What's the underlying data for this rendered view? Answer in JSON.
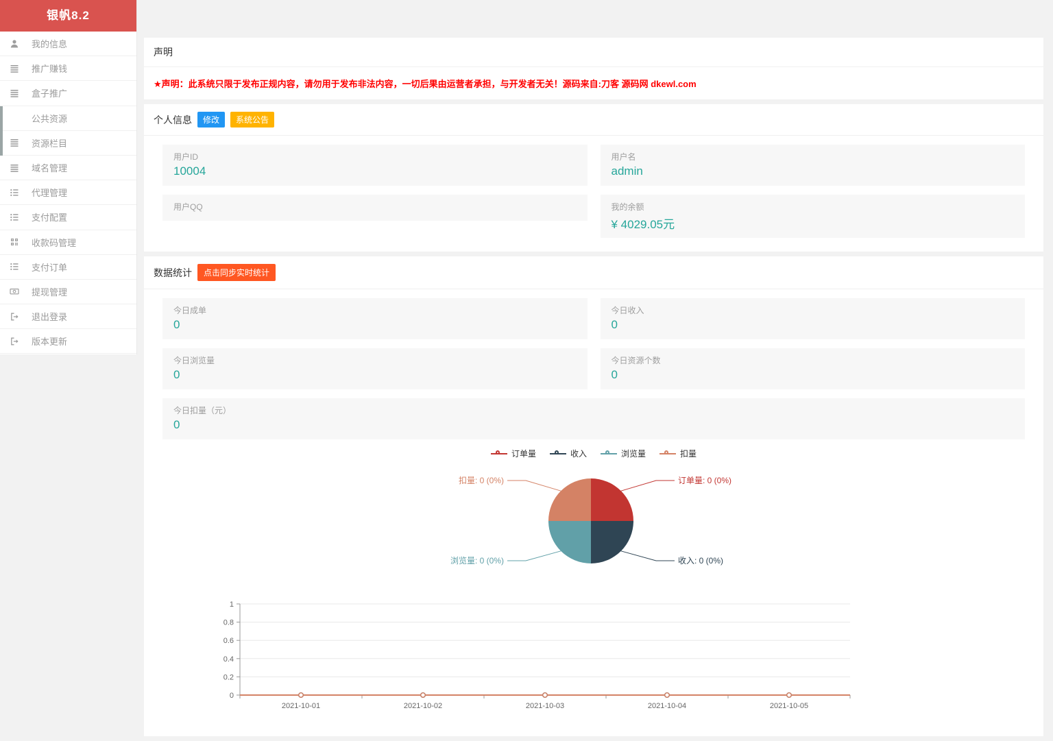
{
  "app": {
    "title": "银帆8.2"
  },
  "sidebar": {
    "items": [
      {
        "label": "我的信息",
        "icon": "user-icon"
      },
      {
        "label": "推广赚钱",
        "icon": "list-icon"
      },
      {
        "label": "盒子推广",
        "icon": "list-icon"
      },
      {
        "label": "公共资源",
        "icon": null
      },
      {
        "label": "资源栏目",
        "icon": "list-icon"
      },
      {
        "label": "域名管理",
        "icon": "list-icon"
      },
      {
        "label": "代理管理",
        "icon": "list-ol-icon"
      },
      {
        "label": "支付配置",
        "icon": "list-ol-icon"
      },
      {
        "label": "收款码管理",
        "icon": "qrcode-icon"
      },
      {
        "label": "支付订单",
        "icon": "list-ol-icon"
      },
      {
        "label": "提现管理",
        "icon": "money-icon"
      },
      {
        "label": "退出登录",
        "icon": "signout-icon"
      },
      {
        "label": "版本更新",
        "icon": "update-icon"
      }
    ]
  },
  "declaration": {
    "title": "声明",
    "warning": "★声明：此系统只限于发布正规内容，请勿用于发布非法内容，一切后果由运营者承担，与开发者无关！源码来自:刀客 源码网 dkewl.com"
  },
  "profile": {
    "title": "个人信息",
    "edit_badge": "修改",
    "announce_badge": "系统公告",
    "fields": {
      "user_id": {
        "label": "用户ID",
        "value": "10004"
      },
      "username": {
        "label": "用户名",
        "value": "admin"
      },
      "user_qq": {
        "label": "用户QQ",
        "value": ""
      },
      "balance": {
        "label": "我的余额",
        "value": "¥ 4029.05元"
      }
    }
  },
  "stats": {
    "title": "数据统计",
    "sync_button": "点击同步实时统计",
    "boxes": {
      "today_orders": {
        "label": "今日成单",
        "value": "0"
      },
      "today_income": {
        "label": "今日收入",
        "value": "0"
      },
      "today_views": {
        "label": "今日浏览量",
        "value": "0"
      },
      "today_resources": {
        "label": "今日资源个数",
        "value": "0"
      },
      "today_deduction": {
        "label": "今日扣量（元）",
        "value": "0"
      }
    }
  },
  "chart_data": [
    {
      "type": "pie",
      "legend_position": "top",
      "legend": [
        "订单量",
        "收入",
        "浏览量",
        "扣量"
      ],
      "series": [
        {
          "name": "订单量",
          "value": 0,
          "percent": "0%",
          "color": "#c23531"
        },
        {
          "name": "收入",
          "value": 0,
          "percent": "0%",
          "color": "#2f4554"
        },
        {
          "name": "浏览量",
          "value": 0,
          "percent": "0%",
          "color": "#61a0a8"
        },
        {
          "name": "扣量",
          "value": 0,
          "percent": "0%",
          "color": "#d48265"
        }
      ]
    },
    {
      "type": "line",
      "categories": [
        "2021-10-01",
        "2021-10-02",
        "2021-10-03",
        "2021-10-04",
        "2021-10-05"
      ],
      "series": [
        {
          "name": "订单量",
          "values": [
            0,
            0,
            0,
            0,
            0
          ],
          "color": "#c23531"
        },
        {
          "name": "收入",
          "values": [
            0,
            0,
            0,
            0,
            0
          ],
          "color": "#2f4554"
        },
        {
          "name": "浏览量",
          "values": [
            0,
            0,
            0,
            0,
            0
          ],
          "color": "#61a0a8"
        },
        {
          "name": "扣量",
          "values": [
            0,
            0,
            0,
            0,
            0
          ],
          "color": "#d48265"
        }
      ],
      "ylim": [
        0,
        1
      ],
      "yticks": [
        0,
        0.2,
        0.4,
        0.6,
        0.8,
        1
      ],
      "grid": true
    }
  ],
  "colors": {
    "sidebar_header_bg": "#d9534f",
    "warning_text": "#ff0000",
    "value_accent": "#26a69a",
    "badge_edit": "#2196f3",
    "badge_announce": "#ffb300",
    "sync_button": "#ff5722"
  }
}
